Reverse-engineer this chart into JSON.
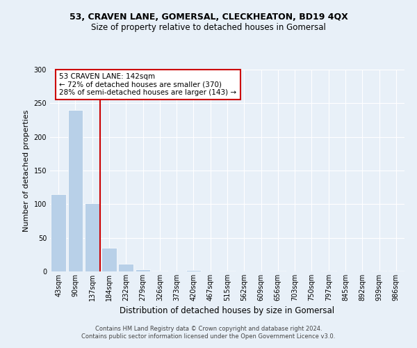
{
  "title": "53, CRAVEN LANE, GOMERSAL, CLECKHEATON, BD19 4QX",
  "subtitle": "Size of property relative to detached houses in Gomersal",
  "xlabel": "Distribution of detached houses by size in Gomersal",
  "ylabel": "Number of detached properties",
  "footer_line1": "Contains HM Land Registry data © Crown copyright and database right 2024.",
  "footer_line2": "Contains public sector information licensed under the Open Government Licence v3.0.",
  "annotation_line1": "53 CRAVEN LANE: 142sqm",
  "annotation_line2": "← 72% of detached houses are smaller (370)",
  "annotation_line3": "28% of semi-detached houses are larger (143) →",
  "bar_labels": [
    "43sqm",
    "90sqm",
    "137sqm",
    "184sqm",
    "232sqm",
    "279sqm",
    "326sqm",
    "373sqm",
    "420sqm",
    "467sqm",
    "515sqm",
    "562sqm",
    "609sqm",
    "656sqm",
    "703sqm",
    "750sqm",
    "797sqm",
    "845sqm",
    "892sqm",
    "939sqm",
    "986sqm"
  ],
  "bar_values": [
    115,
    240,
    101,
    35,
    11,
    3,
    1,
    0,
    2,
    0,
    1,
    0,
    0,
    1,
    0,
    0,
    1,
    0,
    0,
    1,
    1
  ],
  "highlight_bar_index": 2,
  "bar_color": "#b8d0e8",
  "highlight_color": "#cc0000",
  "background_color": "#e8f0f8",
  "ylim": [
    0,
    300
  ],
  "yticks": [
    0,
    50,
    100,
    150,
    200,
    250,
    300
  ],
  "title_fontsize": 9,
  "subtitle_fontsize": 8.5,
  "xlabel_fontsize": 8.5,
  "ylabel_fontsize": 8,
  "tick_fontsize": 7,
  "footer_fontsize": 6,
  "annotation_fontsize": 7.5
}
